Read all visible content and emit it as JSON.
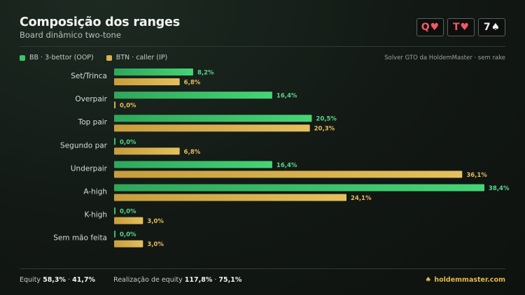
{
  "header": {
    "title": "Composição dos ranges",
    "subtitle": "Board dinâmico two-tone"
  },
  "board": [
    {
      "rank": "Q",
      "suit": "♥",
      "suit_name": "heart-icon",
      "color": "#ef5a63"
    },
    {
      "rank": "T",
      "suit": "♥",
      "suit_name": "heart-icon",
      "color": "#ef5a63"
    },
    {
      "rank": "7",
      "suit": "♠",
      "suit_name": "spade-icon",
      "color": "#f1f1f1"
    }
  ],
  "legend": {
    "bb": "BB · 3-bettor (OOP)",
    "btn": "BTN · caller (IP)",
    "source": "Solver GTO da HoldemMaster · sem rake"
  },
  "colors": {
    "bb": "#3cc46a",
    "btn": "#d9b24c",
    "bb_label": "#5ed38a",
    "btn_label": "#e2bd5e"
  },
  "chart_data": {
    "type": "bar",
    "orientation": "horizontal",
    "categories": [
      "Set/Trinca",
      "Overpair",
      "Top pair",
      "Segundo par",
      "Underpair",
      "A-high",
      "K-high",
      "Sem mão feita"
    ],
    "series": [
      {
        "name": "BB · 3-bettor (OOP)",
        "values": [
          8.2,
          16.4,
          20.5,
          0.0,
          16.4,
          38.4,
          0.0,
          0.0
        ],
        "labels": [
          "8,2%",
          "16,4%",
          "20,5%",
          "0,0%",
          "16,4%",
          "38,4%",
          "0,0%",
          "0,0%"
        ]
      },
      {
        "name": "BTN · caller (IP)",
        "values": [
          6.8,
          0.0,
          20.3,
          6.8,
          36.1,
          24.1,
          3.0,
          3.0
        ],
        "labels": [
          "6,8%",
          "0,0%",
          "20,3%",
          "6,8%",
          "36,1%",
          "24,1%",
          "3,0%",
          "3,0%"
        ]
      }
    ],
    "xlim": [
      0,
      38.4
    ],
    "legend_position": "top-left",
    "grid": false
  },
  "footer": {
    "equity_label": "Equity",
    "equity_value": "58,3%",
    "equity_sep": " · ",
    "equity_value2": "41,7%",
    "realization_label": "Realização de equity",
    "realization_value": "117,8%",
    "realization_sep": " · ",
    "realization_value2": "75,1%",
    "brand": "holdemmaster.com"
  }
}
